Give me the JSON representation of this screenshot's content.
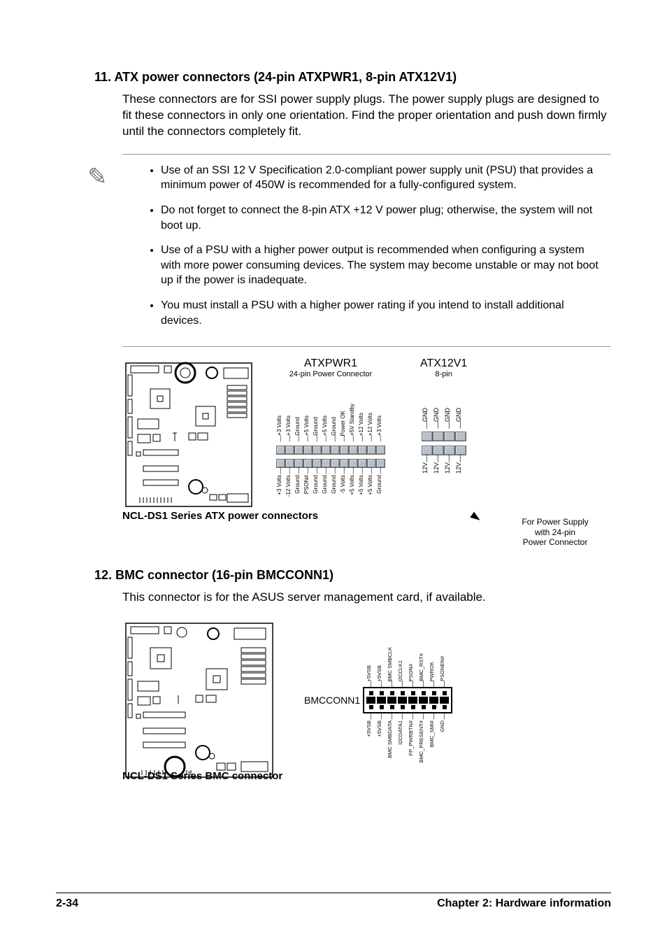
{
  "section11": {
    "title": "11. ATX power connectors (24-pin ATXPWR1, 8-pin ATX12V1)",
    "intro": "These connectors are for SSI power supply plugs. The power supply plugs are designed to fit these connectors in only one orientation. Find the proper orientation and push down firmly until the connectors completely fit.",
    "notes": [
      "Use of an SSI 12 V Specification 2.0-compliant power supply unit (PSU) that provides a minimum power of 450W is recommended for a fully-configured system.",
      "Do not forget to connect the 8-pin ATX +12 V power plug; otherwise, the system will not boot up.",
      "Use of a PSU with a higher power output is recommended when configuring a system with more power consuming devices. The system may become unstable or may not boot up if the power is inadequate.",
      "You must install a PSU with a higher power rating if you intend to install additional devices."
    ],
    "caption": "NCL-DS1 Series ATX power connectors",
    "atxpwr1": {
      "title": "ATXPWR1",
      "subtitle": "24-pin Power Connector",
      "top_labels": [
        "+3 Volts",
        "+3 Volts",
        "Ground",
        "+5 Volts",
        "Ground",
        "+5 Volts",
        "Ground",
        "Power OK",
        "+5V Standby",
        "+12 Volts",
        "+12 Volts",
        "+3 Volts"
      ],
      "bottom_labels": [
        "+3 Volts",
        "-12 Volts",
        "Ground",
        "PSON#",
        "Ground",
        "Ground",
        "Ground",
        "-5 Volts",
        "+5 Volts",
        "+5 Volts",
        "+5 Volts",
        "Ground"
      ]
    },
    "atx12v1": {
      "title": "ATX12V1",
      "subtitle": "8-pin",
      "top_labels": [
        "GND",
        "GND",
        "GND",
        "GND"
      ],
      "bottom_labels": [
        "12V",
        "12V",
        "12V",
        "12V"
      ]
    },
    "supply_note": "For Power Supply with 24-pin Power Connector"
  },
  "section12": {
    "title": "12. BMC connector (16-pin BMCCONN1)",
    "intro": "This connector is for the ASUS server management card, if available.",
    "caption": "NCL-DS1 Series BMC connector",
    "connector_label": "BMCCONN1",
    "top_labels": [
      "+5VSB",
      "+5VSB",
      "BMC SMBCLK",
      "I2CCLK1",
      "PSON#",
      "BMC_RST#",
      "PWROK",
      "PSONEN#"
    ],
    "bottom_labels": [
      "+5VSB",
      "+5VSB",
      "BMC SMBDATA",
      "I2CDATA1",
      "FP_PWRBTN#",
      "BMC_PRESENT#",
      "BMC_SMI#",
      "GND"
    ]
  },
  "footer": {
    "page": "2-34",
    "chapter": "Chapter 2: Hardware information"
  }
}
